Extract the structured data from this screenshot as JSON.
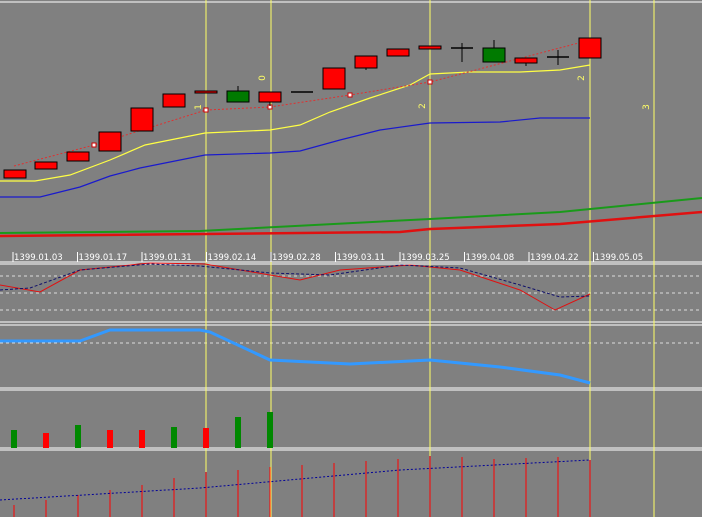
{
  "date_labels": [
    "1399.01.03",
    "1399.01.17",
    "1399.01.31",
    "1399.02.14",
    "1399.02.28",
    "1399.03.11",
    "1399.03.25",
    "1399.04.08",
    "1399.04.22",
    "1399.05.05"
  ],
  "line_labels": [
    "1",
    "0",
    "2",
    "2",
    "3"
  ]
}
